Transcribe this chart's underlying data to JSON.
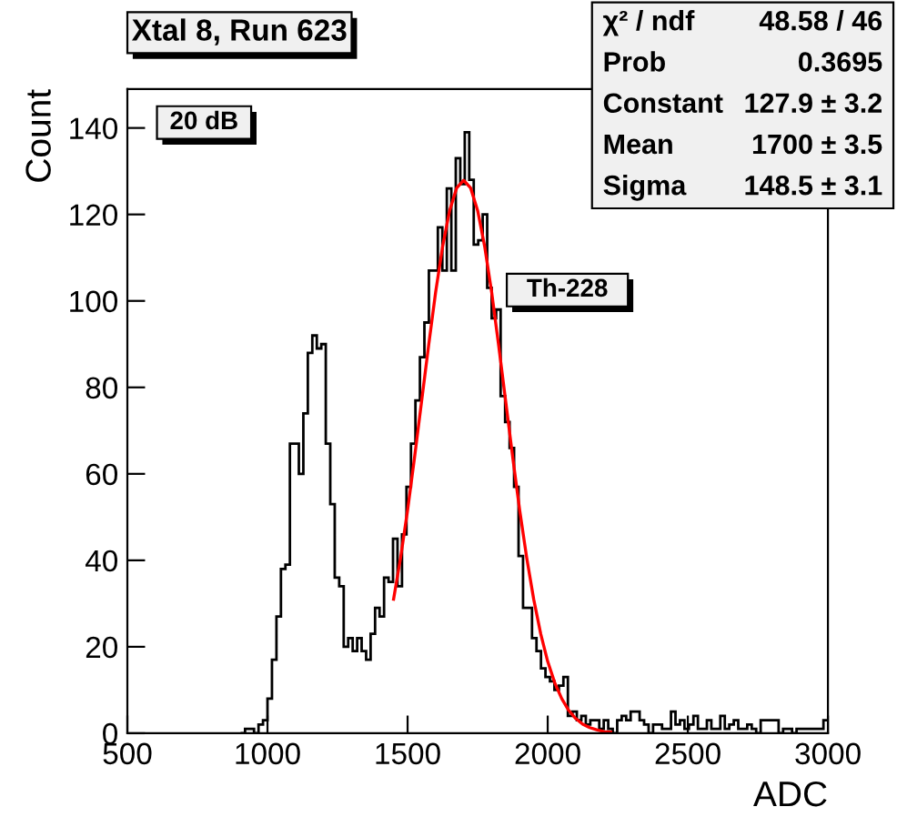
{
  "chart_data": {
    "type": "histogram",
    "title": "Xtal 8, Run 623",
    "xlabel": "ADC",
    "ylabel": "Count",
    "bins": [
      904,
      920,
      936,
      952,
      968,
      984,
      1000,
      1016,
      1032,
      1048,
      1064,
      1080,
      1096,
      1112,
      1128,
      1144,
      1160,
      1176,
      1192,
      1208,
      1224,
      1240,
      1256,
      1272,
      1288,
      1304,
      1320,
      1336,
      1352,
      1368,
      1384,
      1400,
      1416,
      1432,
      1448,
      1464,
      1480,
      1496,
      1512,
      1528,
      1544,
      1560,
      1576,
      1592,
      1608,
      1624,
      1640,
      1656,
      1672,
      1688,
      1704,
      1720,
      1736,
      1752,
      1768,
      1784,
      1800,
      1816,
      1832,
      1848,
      1864,
      1880,
      1896,
      1912,
      1928,
      1944,
      1960,
      1976,
      1992,
      2008,
      2024,
      2040,
      2056,
      2072,
      2088,
      2104,
      2120,
      2136,
      2152,
      2168,
      2184,
      2200,
      2216,
      2232,
      2248,
      2264,
      2280,
      2296,
      2312,
      2328,
      2344,
      2360,
      2376,
      2392,
      2408,
      2424,
      2440,
      2456,
      2472,
      2488,
      2504,
      2520,
      2536,
      2552,
      2568,
      2584,
      2600,
      2616,
      2632,
      2648,
      2664,
      2680,
      2696,
      2712,
      2728,
      2744,
      2760,
      2776,
      2792,
      2808,
      2824,
      2840,
      2856,
      2872,
      2888,
      2904,
      2920,
      2936,
      2952,
      2968,
      2984,
      3000
    ],
    "values": [
      0,
      1,
      1,
      0,
      2,
      3,
      8,
      17,
      27,
      38,
      39,
      67,
      67,
      60,
      74,
      88,
      92,
      89,
      90,
      67,
      53,
      36,
      34,
      20,
      22,
      19,
      22,
      19,
      17,
      23,
      29,
      27,
      36,
      35,
      45,
      34,
      46,
      57,
      67,
      77,
      87,
      95,
      107,
      107,
      117,
      107,
      126,
      107,
      133,
      127,
      139,
      128,
      113,
      114,
      120,
      103,
      96,
      98,
      78,
      72,
      66,
      57,
      41,
      29,
      29,
      22,
      19,
      15,
      13,
      12,
      10,
      11,
      13,
      4,
      5,
      3,
      4,
      2,
      3,
      3,
      1,
      3,
      1,
      0,
      3,
      4,
      3,
      5,
      5,
      3,
      2,
      0,
      2,
      2,
      1,
      1,
      5,
      2,
      3,
      1,
      2,
      4,
      1,
      1,
      3,
      1,
      1,
      4,
      1,
      2,
      3,
      1,
      1,
      2,
      1,
      0,
      3,
      3,
      3,
      3,
      0,
      1,
      1,
      0,
      1,
      1,
      1,
      1,
      1,
      1,
      3
    ],
    "color": "#000000",
    "series": [
      {
        "type": "line",
        "color": "#ff0000",
        "x": [
          1450,
          1475,
          1500,
          1525,
          1550,
          1575,
          1600,
          1625,
          1650,
          1675,
          1700,
          1725,
          1750,
          1775,
          1800,
          1825,
          1850,
          1875,
          1900,
          1925,
          1950,
          1975,
          2000,
          2025,
          2050,
          2075,
          2100,
          2125,
          2150,
          2175,
          2200,
          2225
        ],
        "values": [
          31.0,
          40.6,
          51.6,
          63.9,
          76.8,
          89.7,
          102.0,
          112.6,
          120.9,
          126.1,
          127.9,
          126.1,
          120.9,
          112.6,
          102.0,
          89.7,
          76.8,
          63.9,
          51.6,
          40.6,
          31.0,
          23.0,
          16.6,
          11.7,
          8.0,
          5.3,
          3.4,
          2.1,
          1.3,
          0.8,
          0.4,
          0.3
        ]
      }
    ],
    "annotations": [
      "20 dB",
      "Th-228",
      "χ² / ndf",
      "48.58 / 46",
      "Prob",
      "0.3695",
      "Constant",
      "127.9 ± 3.2",
      "Mean",
      "1700 ± 3.5",
      "Sigma",
      "148.5 ± 3.1"
    ],
    "xlim": [
      500,
      3000
    ],
    "ylim": [
      0,
      149
    ],
    "xticks": [
      500,
      1000,
      1500,
      2000,
      2500,
      3000
    ],
    "yticks": [
      0,
      20,
      40,
      60,
      80,
      100,
      120,
      140
    ],
    "grid": false
  }
}
